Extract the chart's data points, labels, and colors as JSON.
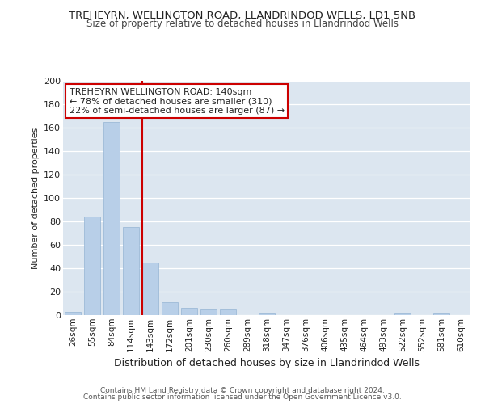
{
  "title1": "TREHEYRN, WELLINGTON ROAD, LLANDRINDOD WELLS, LD1 5NB",
  "title2": "Size of property relative to detached houses in Llandrindod Wells",
  "xlabel": "Distribution of detached houses by size in Llandrindod Wells",
  "ylabel": "Number of detached properties",
  "bar_labels": [
    "26sqm",
    "55sqm",
    "84sqm",
    "114sqm",
    "143sqm",
    "172sqm",
    "201sqm",
    "230sqm",
    "260sqm",
    "289sqm",
    "318sqm",
    "347sqm",
    "376sqm",
    "406sqm",
    "435sqm",
    "464sqm",
    "493sqm",
    "522sqm",
    "552sqm",
    "581sqm",
    "610sqm"
  ],
  "bar_values": [
    3,
    84,
    165,
    75,
    45,
    11,
    6,
    5,
    5,
    0,
    2,
    0,
    0,
    0,
    0,
    0,
    0,
    2,
    0,
    2,
    0
  ],
  "bar_color": "#b8cfe8",
  "bar_edge_color": "#94b4d4",
  "vline_index": 4,
  "vline_color": "#cc0000",
  "annotation_title": "TREHEYRN WELLINGTON ROAD: 140sqm",
  "annotation_line1": "← 78% of detached houses are smaller (310)",
  "annotation_line2": "22% of semi-detached houses are larger (87) →",
  "annotation_box_color": "#ffffff",
  "annotation_box_edge": "#cc0000",
  "ylim": [
    0,
    200
  ],
  "yticks": [
    0,
    20,
    40,
    60,
    80,
    100,
    120,
    140,
    160,
    180,
    200
  ],
  "bg_color": "#dce6f0",
  "footer1": "Contains HM Land Registry data © Crown copyright and database right 2024.",
  "footer2": "Contains public sector information licensed under the Open Government Licence v3.0."
}
